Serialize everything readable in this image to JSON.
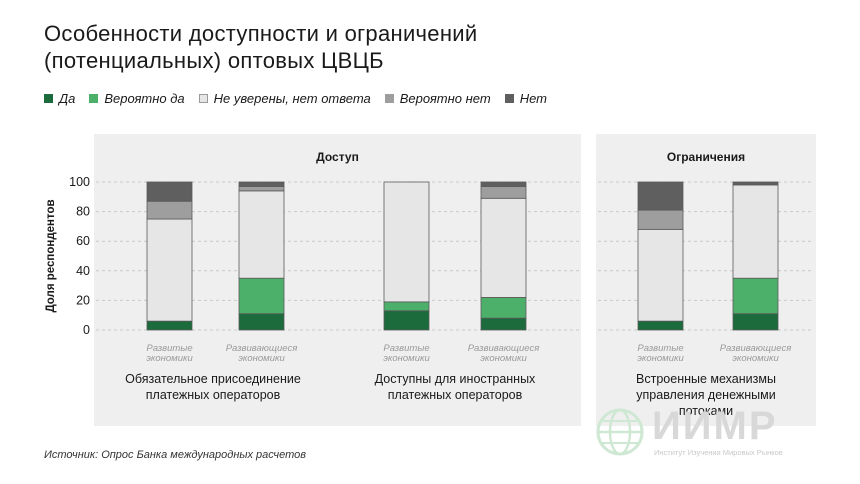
{
  "header": {
    "title_line1": "Особенности доступности и ограничений",
    "title_line2": "(потенциальных) оптовых ЦВЦБ"
  },
  "legend": {
    "items": [
      {
        "label": "Да",
        "color": "#1b6b3c"
      },
      {
        "label": "Вероятно да",
        "color": "#4caf6a"
      },
      {
        "label": "Не уверены, нет ответа",
        "color": "#e6e6e6"
      },
      {
        "label": "Вероятно нет",
        "color": "#9e9e9e"
      },
      {
        "label": "Нет",
        "color": "#5f5f5f"
      }
    ]
  },
  "panels": {
    "access_title": "Доступ",
    "limits_title": "Ограничения"
  },
  "groups": [
    {
      "label": "Обязательное присоединение\nплатежных операторов"
    },
    {
      "label": "Доступны для иностранных\nплатежных операторов"
    },
    {
      "label": "Встроенные механизмы\nуправления денежными\nпотоками"
    }
  ],
  "chart_data": {
    "type": "bar",
    "stacked": true,
    "ylabel": "Доля респондентов",
    "ylim": [
      0,
      100
    ],
    "yticks": [
      0,
      20,
      40,
      60,
      80,
      100
    ],
    "categories": [
      "Развитые\nэкономики",
      "Развивающиеся\nэкономики",
      "Развитые\nэкономики",
      "Развивающиеся\nэкономики",
      "Развитые\nэкономики",
      "Развивающиеся\nэкономики"
    ],
    "groups": [
      "Обязательное присоединение платежных операторов",
      "Доступны для иностранных платежных операторов",
      "Встроенные механизмы управления денежными потоками"
    ],
    "series": [
      {
        "name": "Да",
        "color": "#1b6b3c",
        "values": [
          6,
          11,
          13,
          8,
          6,
          11
        ]
      },
      {
        "name": "Вероятно да",
        "color": "#4caf6a",
        "values": [
          0,
          24,
          6,
          14,
          0,
          24
        ]
      },
      {
        "name": "Не уверены, нет ответа",
        "color": "#e6e6e6",
        "values": [
          69,
          59,
          81,
          67,
          62,
          63
        ]
      },
      {
        "name": "Вероятно нет",
        "color": "#9e9e9e",
        "values": [
          12,
          3,
          0,
          8,
          13,
          0
        ]
      },
      {
        "name": "Нет",
        "color": "#5f5f5f",
        "values": [
          13,
          3,
          0,
          3,
          19,
          2
        ]
      }
    ],
    "grid": true,
    "legend_position": "top-left"
  },
  "footer": {
    "source": "Источник: Опрос Банка международных расчетов"
  },
  "logo": {
    "word": "ИИМР",
    "sub": "Институт Изучения Мировых Рынков"
  }
}
